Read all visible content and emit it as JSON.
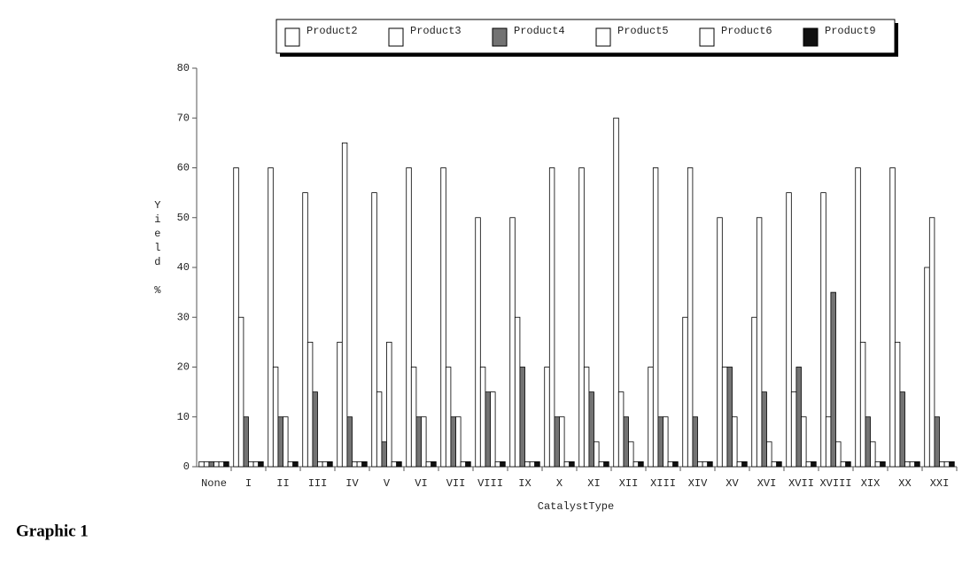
{
  "chart_data": {
    "type": "bar",
    "caption": "Graphic 1",
    "x_label": "CatalystType",
    "y_label": "Yield %",
    "categories": [
      "None",
      "I",
      "II",
      "III",
      "IV",
      "V",
      "VI",
      "VII",
      "VIII",
      "IX",
      "X",
      "XI",
      "XII",
      "XIII",
      "XIV",
      "XV",
      "XVI",
      "XVII",
      "XVIII",
      "XIX",
      "XX",
      "XXI"
    ],
    "series": [
      {
        "name": "Product2",
        "color": "#ffffff",
        "values": [
          1,
          60,
          60,
          55,
          25,
          55,
          60,
          60,
          50,
          50,
          20,
          60,
          70,
          20,
          30,
          50,
          30,
          55,
          55,
          60,
          60,
          40
        ]
      },
      {
        "name": "Product3",
        "color": "#ffffff",
        "values": [
          1,
          30,
          20,
          25,
          65,
          15,
          20,
          20,
          20,
          30,
          60,
          20,
          15,
          60,
          60,
          20,
          50,
          15,
          10,
          25,
          25,
          50
        ]
      },
      {
        "name": "Product4",
        "color": "#737373",
        "values": [
          1,
          10,
          10,
          15,
          10,
          5,
          10,
          10,
          15,
          20,
          10,
          15,
          10,
          10,
          10,
          20,
          15,
          20,
          35,
          10,
          15,
          10
        ]
      },
      {
        "name": "Product5",
        "color": "#ffffff",
        "values": [
          1,
          1,
          10,
          1,
          1,
          25,
          10,
          10,
          15,
          1,
          10,
          5,
          5,
          10,
          1,
          10,
          5,
          10,
          5,
          5,
          1,
          1
        ]
      },
      {
        "name": "Product6",
        "color": "#ffffff",
        "values": [
          1,
          1,
          1,
          1,
          1,
          1,
          1,
          1,
          1,
          1,
          1,
          1,
          1,
          1,
          1,
          1,
          1,
          1,
          1,
          1,
          1,
          1
        ]
      },
      {
        "name": "Product9",
        "color": "#111111",
        "values": [
          1,
          1,
          1,
          1,
          1,
          1,
          1,
          1,
          1,
          1,
          1,
          1,
          1,
          1,
          1,
          1,
          1,
          1,
          1,
          1,
          1,
          1
        ]
      }
    ],
    "ylim": [
      0,
      80
    ],
    "yticks": [
      0,
      10,
      20,
      30,
      40,
      50,
      60,
      70,
      80
    ]
  }
}
